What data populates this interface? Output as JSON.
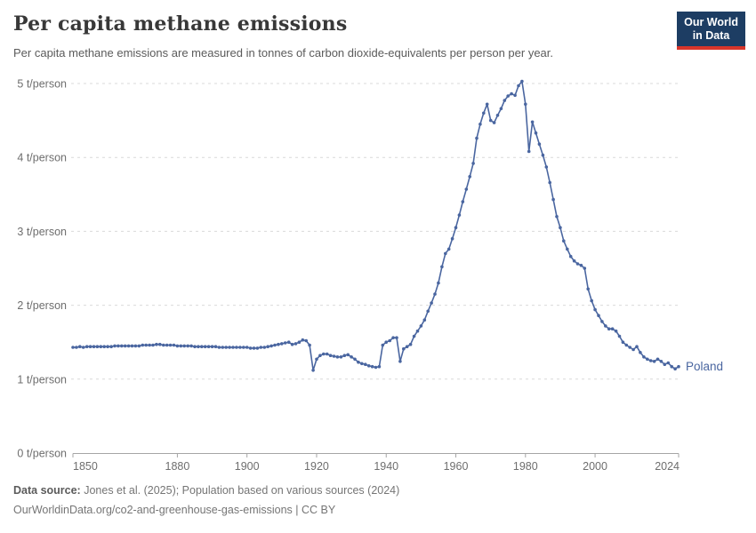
{
  "header": {
    "title": "Per capita methane emissions",
    "subtitle": "Per capita methane emissions are measured in tonnes of carbon dioxide-equivalents per person per year.",
    "logo": {
      "line1": "Our World",
      "line2": "in Data"
    }
  },
  "footer": {
    "datasource_label": "Data source:",
    "datasource_text": " Jones et al. (2025); Population based on various sources (2024)",
    "url_line": "OurWorldinData.org/co2-and-greenhouse-gas-emissions | CC BY"
  },
  "colors": {
    "line": "#4a66a0",
    "grid": "#d9d9d9",
    "axis": "#a5a5a5",
    "tick_text": "#6e6e6e",
    "logo_bg": "#1d3d63",
    "logo_red": "#d8352a"
  },
  "chart_data": {
    "type": "line",
    "title": "Per capita methane emissions",
    "unit": "t/person",
    "xlim": [
      1850,
      2024
    ],
    "ylim": [
      0,
      5
    ],
    "yticks": [
      0,
      1,
      2,
      3,
      4,
      5
    ],
    "ytick_suffix": " t/person",
    "xticks": [
      1850,
      1880,
      1900,
      1920,
      1940,
      1960,
      1980,
      2000,
      2024
    ],
    "grid": "horizontal-dashed",
    "legend_position": "end-of-line-label",
    "series": [
      {
        "name": "Poland",
        "color": "#4a66a0",
        "years": [
          1850,
          1851,
          1852,
          1853,
          1854,
          1855,
          1856,
          1857,
          1858,
          1859,
          1860,
          1861,
          1862,
          1863,
          1864,
          1865,
          1866,
          1867,
          1868,
          1869,
          1870,
          1871,
          1872,
          1873,
          1874,
          1875,
          1876,
          1877,
          1878,
          1879,
          1880,
          1881,
          1882,
          1883,
          1884,
          1885,
          1886,
          1887,
          1888,
          1889,
          1890,
          1891,
          1892,
          1893,
          1894,
          1895,
          1896,
          1897,
          1898,
          1899,
          1900,
          1901,
          1902,
          1903,
          1904,
          1905,
          1906,
          1907,
          1908,
          1909,
          1910,
          1911,
          1912,
          1913,
          1914,
          1915,
          1916,
          1917,
          1918,
          1919,
          1920,
          1921,
          1922,
          1923,
          1924,
          1925,
          1926,
          1927,
          1928,
          1929,
          1930,
          1931,
          1932,
          1933,
          1934,
          1935,
          1936,
          1937,
          1938,
          1939,
          1940,
          1941,
          1942,
          1943,
          1944,
          1945,
          1946,
          1947,
          1948,
          1949,
          1950,
          1951,
          1952,
          1953,
          1954,
          1955,
          1956,
          1957,
          1958,
          1959,
          1960,
          1961,
          1962,
          1963,
          1964,
          1965,
          1966,
          1967,
          1968,
          1969,
          1970,
          1971,
          1972,
          1973,
          1974,
          1975,
          1976,
          1977,
          1978,
          1979,
          1980,
          1981,
          1982,
          1983,
          1984,
          1985,
          1986,
          1987,
          1988,
          1989,
          1990,
          1991,
          1992,
          1993,
          1994,
          1995,
          1996,
          1997,
          1998,
          1999,
          2000,
          2001,
          2002,
          2003,
          2004,
          2005,
          2006,
          2007,
          2008,
          2009,
          2010,
          2011,
          2012,
          2013,
          2014,
          2015,
          2016,
          2017,
          2018,
          2019,
          2020,
          2021,
          2022,
          2023,
          2024
        ],
        "values": [
          1.43,
          1.43,
          1.44,
          1.43,
          1.44,
          1.44,
          1.44,
          1.44,
          1.44,
          1.44,
          1.44,
          1.44,
          1.45,
          1.45,
          1.45,
          1.45,
          1.45,
          1.45,
          1.45,
          1.45,
          1.46,
          1.46,
          1.46,
          1.46,
          1.47,
          1.47,
          1.46,
          1.46,
          1.46,
          1.46,
          1.45,
          1.45,
          1.45,
          1.45,
          1.45,
          1.44,
          1.44,
          1.44,
          1.44,
          1.44,
          1.44,
          1.44,
          1.43,
          1.43,
          1.43,
          1.43,
          1.43,
          1.43,
          1.43,
          1.43,
          1.43,
          1.42,
          1.42,
          1.42,
          1.43,
          1.43,
          1.44,
          1.45,
          1.46,
          1.47,
          1.48,
          1.49,
          1.5,
          1.47,
          1.48,
          1.5,
          1.53,
          1.52,
          1.46,
          1.12,
          1.27,
          1.32,
          1.34,
          1.34,
          1.32,
          1.31,
          1.3,
          1.3,
          1.32,
          1.33,
          1.3,
          1.27,
          1.23,
          1.21,
          1.2,
          1.18,
          1.17,
          1.16,
          1.17,
          1.46,
          1.5,
          1.52,
          1.56,
          1.56,
          1.24,
          1.41,
          1.44,
          1.47,
          1.58,
          1.65,
          1.72,
          1.8,
          1.92,
          2.03,
          2.15,
          2.3,
          2.52,
          2.7,
          2.76,
          2.9,
          3.05,
          3.22,
          3.4,
          3.57,
          3.74,
          3.92,
          4.26,
          4.45,
          4.6,
          4.72,
          4.5,
          4.47,
          4.57,
          4.66,
          4.77,
          4.83,
          4.86,
          4.84,
          4.97,
          5.03,
          4.72,
          4.08,
          4.48,
          4.33,
          4.18,
          4.03,
          3.87,
          3.66,
          3.43,
          3.2,
          3.05,
          2.87,
          2.76,
          2.66,
          2.6,
          2.56,
          2.54,
          2.5,
          2.22,
          2.06,
          1.94,
          1.86,
          1.78,
          1.72,
          1.68,
          1.68,
          1.65,
          1.58,
          1.5,
          1.46,
          1.43,
          1.4,
          1.44,
          1.36,
          1.3,
          1.27,
          1.25,
          1.24,
          1.27,
          1.24,
          1.2,
          1.22,
          1.17,
          1.14,
          1.17
        ]
      }
    ]
  }
}
